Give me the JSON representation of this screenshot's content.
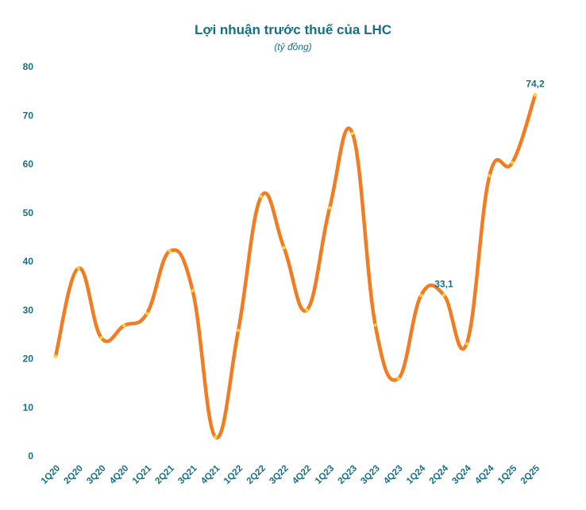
{
  "chart_data": {
    "type": "line",
    "title": "Lợi nhuận trước thuế của LHC",
    "subtitle": "(tỷ đồng)",
    "xlabel": "",
    "ylabel": "",
    "categories": [
      "1Q20",
      "2Q20",
      "3Q20",
      "4Q20",
      "1Q21",
      "2Q21",
      "3Q21",
      "4Q21",
      "1Q22",
      "2Q22",
      "3Q22",
      "4Q22",
      "1Q23",
      "2Q23",
      "3Q23",
      "4Q23",
      "1Q24",
      "2Q24",
      "3Q24",
      "4Q24",
      "1Q25",
      "2Q25"
    ],
    "series": [
      {
        "values": [
          20.5,
          38.6,
          24.3,
          26.8,
          29.3,
          42.1,
          34.0,
          3.9,
          25.8,
          53.3,
          42.8,
          30.0,
          51.0,
          66.3,
          26.9,
          15.9,
          33.0,
          33.1,
          23.1,
          57.6,
          60.3,
          74.2
        ]
      }
    ],
    "data_labels": [
      {
        "category": "2Q24",
        "text": "33,1"
      },
      {
        "category": "2Q25",
        "text": "74,2"
      }
    ],
    "ylim": [
      0,
      80
    ],
    "yticks": [
      0,
      10,
      20,
      30,
      40,
      50,
      60,
      70,
      80
    ],
    "grid": false,
    "legend": "none",
    "colors": {
      "line": "#f47b20",
      "marker": "#f5d33a",
      "text": "#1a6e84"
    }
  }
}
